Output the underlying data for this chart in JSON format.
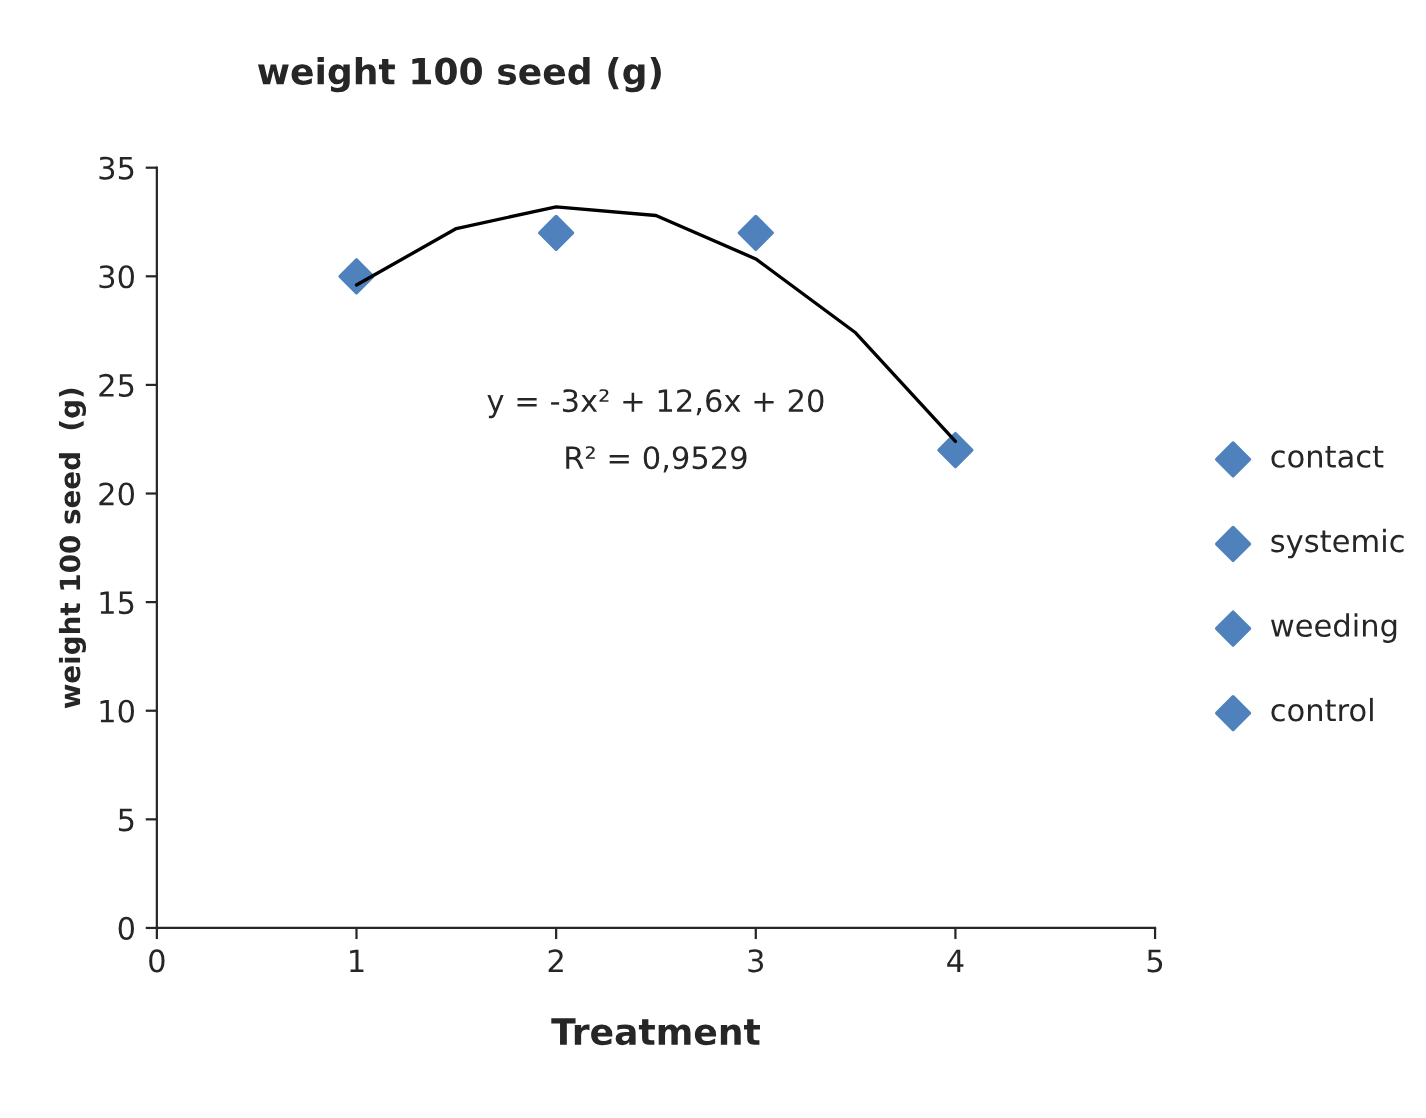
{
  "chart_data": {
    "type": "scatter",
    "title": "weight 100 seed (g)",
    "xlabel": "Treatment",
    "ylabel": "weight 100 seed  (g)",
    "xlim": [
      0,
      5
    ],
    "xticks": [
      0,
      1,
      2,
      3,
      4,
      5
    ],
    "ylim": [
      0,
      35
    ],
    "yticks": [
      0,
      5,
      10,
      15,
      20,
      25,
      30,
      35
    ],
    "grid": false,
    "legend": "right",
    "series": [
      {
        "name": "contact",
        "color": "#4f81bd",
        "marker": "diamond",
        "x": [
          1
        ],
        "values": [
          30
        ]
      },
      {
        "name": "systemic",
        "color": "#4f81bd",
        "marker": "diamond",
        "x": [
          2
        ],
        "values": [
          32
        ]
      },
      {
        "name": "weeding",
        "color": "#4f81bd",
        "marker": "diamond",
        "x": [
          3
        ],
        "values": [
          32
        ]
      },
      {
        "name": "control",
        "color": "#4f81bd",
        "marker": "diamond",
        "x": [
          4
        ],
        "values": [
          22
        ]
      },
      {
        "type": "line",
        "color": "#000000",
        "marker": "none",
        "x": [
          1,
          1.5,
          2,
          2.5,
          3,
          3.5,
          4
        ],
        "values": [
          29.6,
          32.2,
          33.2,
          32.8,
          30.8,
          27.4,
          22.4
        ]
      }
    ],
    "annotations": [
      "y = -3x² + 12,6x + 20",
      "R² = 0,9529"
    ]
  }
}
